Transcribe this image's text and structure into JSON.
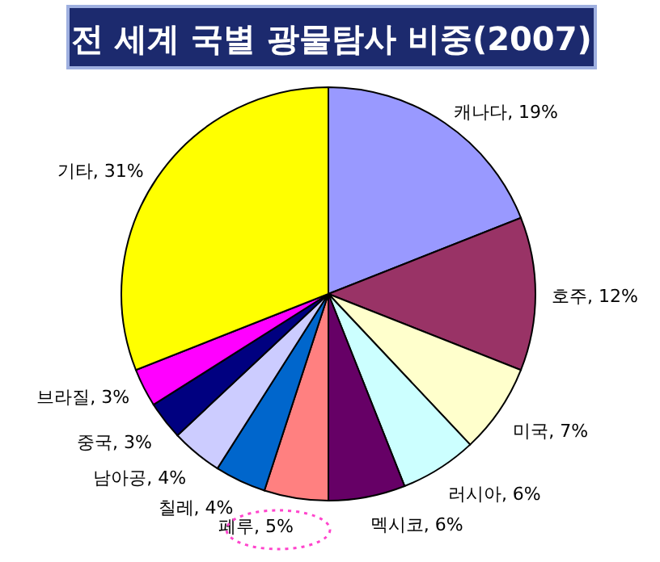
{
  "chart_data": {
    "type": "pie",
    "title": "전 세계 국별 광물탐사 비중(2007)",
    "categories": [
      "캐나다",
      "호주",
      "미국",
      "러시아",
      "멕시코",
      "페루",
      "칠레",
      "남아공",
      "중국",
      "브라질",
      "기타"
    ],
    "values": [
      19,
      12,
      7,
      6,
      6,
      5,
      4,
      4,
      3,
      3,
      31
    ],
    "value_labels": [
      "19%",
      "12%",
      "7%",
      "6%",
      "6%",
      "5%",
      "4%",
      "4%",
      "3%",
      "3%",
      "31%"
    ],
    "colors": [
      "#9999ff",
      "#993366",
      "#ffffcc",
      "#ccffff",
      "#660066",
      "#ff8080",
      "#0066cc",
      "#ccccff",
      "#000080",
      "#ff00ff",
      "#ffff00"
    ]
  }
}
